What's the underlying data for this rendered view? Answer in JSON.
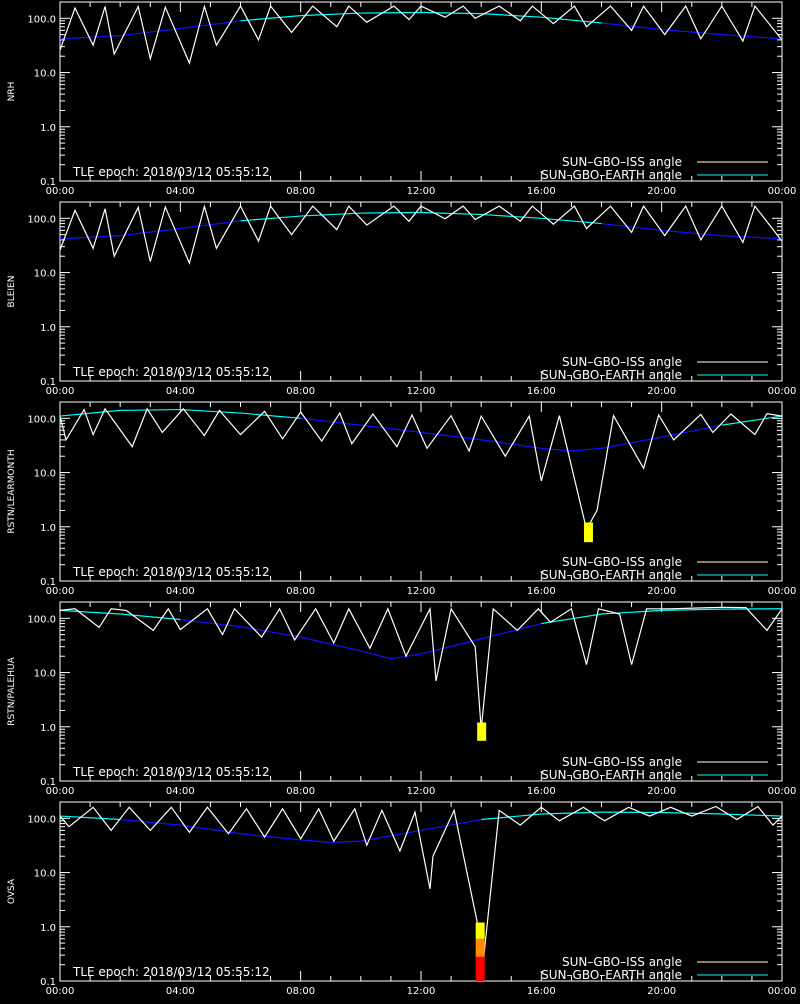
{
  "figure": {
    "x_ticks": [
      "00:00",
      "04:00",
      "08:00",
      "12:00",
      "16:00",
      "20:00",
      "00:00"
    ],
    "y_ticks": [
      "0.1",
      "1.0",
      "10.0",
      "100.0"
    ],
    "epoch_text": "TLE epoch: 2018/03/12 05:55:12",
    "legend": [
      {
        "label": "SUN–GBO–ISS angle",
        "color": "#ffffff"
      },
      {
        "label": "SUN–GBO–EARTH angle",
        "color": "#00ffff"
      }
    ],
    "colors": {
      "iss": "#ffffff",
      "earth_above": "#00ffff",
      "earth_below": "#1010ff",
      "ylow": "#ffff00",
      "orange": "#ff8c00",
      "red": "#ff0000",
      "background": "#000000"
    }
  },
  "chart_data": [
    {
      "type": "line",
      "ylabel": "NRH",
      "xlim": [
        0,
        24
      ],
      "ylim": [
        0.1,
        200
      ],
      "y_scale": "log",
      "earth": {
        "x": [
          0,
          2,
          4,
          6,
          8,
          10,
          12,
          14,
          16,
          18,
          20,
          22,
          24
        ],
        "y": [
          42,
          48,
          65,
          90,
          112,
          125,
          128,
          122,
          105,
          82,
          62,
          50,
          42
        ]
      },
      "iss": {
        "x": [
          0,
          0.5,
          1.1,
          1.5,
          1.8,
          2.6,
          3.0,
          3.5,
          4.3,
          4.8,
          5.2,
          6.0,
          6.6,
          7.0,
          7.7,
          8.4,
          9.2,
          9.6,
          10.2,
          11.1,
          11.6,
          12.0,
          12.8,
          13.4,
          13.8,
          14.6,
          15.3,
          15.7,
          16.4,
          17.1,
          17.5,
          18.3,
          19.0,
          19.4,
          20.1,
          20.8,
          21.3,
          22.0,
          22.7,
          23.1,
          24
        ],
        "y": [
          26,
          155,
          32,
          165,
          22,
          165,
          18,
          160,
          15,
          165,
          32,
          168,
          40,
          168,
          55,
          168,
          70,
          168,
          85,
          168,
          95,
          168,
          105,
          168,
          100,
          168,
          90,
          168,
          80,
          168,
          70,
          168,
          60,
          168,
          50,
          168,
          42,
          168,
          38,
          168,
          40
        ]
      },
      "markers": []
    },
    {
      "type": "line",
      "ylabel": "BLEIEN",
      "xlim": [
        0,
        24
      ],
      "ylim": [
        0.1,
        200
      ],
      "y_scale": "log",
      "earth": {
        "x": [
          0,
          2,
          4,
          6,
          8,
          10,
          12,
          14,
          16,
          18,
          20,
          22,
          24
        ],
        "y": [
          42,
          48,
          65,
          90,
          110,
          125,
          128,
          118,
          100,
          80,
          60,
          48,
          42
        ]
      },
      "iss": {
        "x": [
          0,
          0.5,
          1.1,
          1.5,
          1.8,
          2.6,
          3.0,
          3.5,
          4.3,
          4.8,
          5.2,
          6.0,
          6.6,
          7.0,
          7.7,
          8.4,
          9.2,
          9.6,
          10.2,
          11.1,
          11.6,
          12.0,
          12.8,
          13.4,
          13.8,
          14.6,
          15.3,
          15.7,
          16.4,
          17.1,
          17.5,
          18.3,
          19.0,
          19.4,
          20.1,
          20.8,
          21.3,
          22.0,
          22.7,
          23.1,
          24
        ],
        "y": [
          26,
          140,
          28,
          150,
          20,
          160,
          16,
          162,
          15,
          165,
          28,
          168,
          38,
          168,
          50,
          168,
          62,
          168,
          75,
          168,
          88,
          168,
          98,
          168,
          95,
          168,
          88,
          168,
          78,
          168,
          65,
          168,
          55,
          168,
          48,
          168,
          40,
          168,
          36,
          168,
          38
        ]
      },
      "markers": []
    },
    {
      "type": "line",
      "ylabel": "RSTN/LEARMONTH",
      "xlim": [
        0,
        24
      ],
      "ylim": [
        0.1,
        200
      ],
      "y_scale": "log",
      "earth": {
        "x": [
          0,
          2,
          4,
          6,
          8,
          10,
          12,
          14,
          16,
          17,
          18,
          20,
          22,
          24
        ],
        "y": [
          110,
          140,
          145,
          125,
          100,
          75,
          55,
          40,
          28,
          25,
          28,
          45,
          75,
          110
        ]
      },
      "iss": {
        "x": [
          0,
          0.2,
          0.8,
          1.1,
          1.5,
          2.4,
          2.9,
          3.4,
          4.1,
          4.8,
          5.3,
          6.0,
          6.8,
          7.4,
          8.0,
          8.7,
          9.3,
          9.7,
          10.4,
          11.2,
          11.7,
          12.2,
          13.0,
          13.6,
          14.0,
          14.8,
          15.6,
          16.0,
          16.6,
          17.5,
          17.85,
          18.4,
          19.4,
          19.9,
          20.4,
          21.3,
          21.7,
          22.3,
          23.1,
          23.5,
          24
        ],
        "y": [
          110,
          40,
          145,
          50,
          150,
          30,
          150,
          55,
          150,
          48,
          140,
          50,
          135,
          42,
          130,
          38,
          125,
          34,
          120,
          30,
          115,
          28,
          112,
          25,
          110,
          20,
          110,
          7,
          112,
          0.9,
          2,
          112,
          12,
          115,
          40,
          118,
          55,
          120,
          50,
          122,
          110
        ]
      },
      "markers": [
        {
          "x": 17.55,
          "stack": [
            {
              "from": 0.52,
              "to": 1.2,
              "color": "#ffff00"
            }
          ]
        }
      ]
    },
    {
      "type": "line",
      "ylabel": "RSTN/PALEHUA",
      "xlim": [
        0,
        24
      ],
      "ylim": [
        0.1,
        200
      ],
      "y_scale": "log",
      "earth": {
        "x": [
          0,
          2,
          4,
          6,
          8,
          10,
          11,
          12,
          14,
          16,
          18,
          20,
          22,
          24
        ],
        "y": [
          140,
          120,
          95,
          70,
          45,
          25,
          18,
          22,
          42,
          80,
          120,
          140,
          148,
          150
        ]
      },
      "iss": {
        "x": [
          0,
          0.5,
          1.3,
          1.7,
          2.2,
          3.1,
          3.6,
          4.0,
          4.9,
          5.4,
          5.8,
          6.7,
          7.3,
          7.8,
          8.5,
          9.1,
          9.6,
          10.3,
          10.9,
          11.5,
          12.3,
          12.5,
          13.0,
          13.8,
          14.0,
          14.4,
          15.2,
          15.9,
          16.3,
          17.0,
          17.5,
          17.9,
          18.6,
          19.0,
          19.5,
          20.3,
          21.2,
          22.0,
          22.8,
          23.5,
          24
        ],
        "y": [
          140,
          150,
          68,
          150,
          140,
          60,
          150,
          62,
          150,
          50,
          150,
          45,
          150,
          40,
          150,
          35,
          150,
          28,
          150,
          20,
          150,
          7,
          150,
          30,
          0.9,
          150,
          60,
          150,
          85,
          150,
          14,
          150,
          120,
          14,
          150,
          150,
          155,
          160,
          158,
          60,
          150
        ]
      },
      "markers": [
        {
          "x": 14.0,
          "stack": [
            {
              "from": 0.55,
              "to": 1.2,
              "color": "#ffff00"
            }
          ]
        }
      ]
    },
    {
      "type": "line",
      "ylabel": "OVSA",
      "xlim": [
        0,
        24
      ],
      "ylim": [
        0.1,
        200
      ],
      "y_scale": "log",
      "earth": {
        "x": [
          0,
          2,
          4,
          6,
          8,
          9,
          10,
          12,
          14,
          16,
          18,
          20,
          22,
          24
        ],
        "y": [
          110,
          95,
          75,
          52,
          40,
          36,
          38,
          60,
          95,
          120,
          130,
          128,
          120,
          110
        ]
      },
      "iss": {
        "x": [
          0,
          0.3,
          1.1,
          1.7,
          2.3,
          3.0,
          3.7,
          4.3,
          4.9,
          5.6,
          6.2,
          6.8,
          7.4,
          8.0,
          8.6,
          9.1,
          9.8,
          10.2,
          10.7,
          11.3,
          11.8,
          12.3,
          12.4,
          13.1,
          13.9,
          14.0,
          14.6,
          15.3,
          16.0,
          16.6,
          17.4,
          18.1,
          18.9,
          19.6,
          20.3,
          21.0,
          21.8,
          22.5,
          23.2,
          23.7,
          24
        ],
        "y": [
          110,
          70,
          160,
          60,
          160,
          60,
          160,
          55,
          160,
          52,
          150,
          45,
          150,
          42,
          150,
          38,
          150,
          32,
          140,
          25,
          130,
          5,
          20,
          140,
          1,
          0.1,
          140,
          75,
          160,
          90,
          160,
          90,
          160,
          110,
          160,
          110,
          165,
          95,
          165,
          75,
          110
        ]
      },
      "markers": [
        {
          "x": 13.95,
          "stack": [
            {
              "from": 0.1,
              "to": 0.28,
              "color": "#ff0000"
            },
            {
              "from": 0.28,
              "to": 0.6,
              "color": "#ff8c00"
            },
            {
              "from": 0.6,
              "to": 1.2,
              "color": "#ffff00"
            }
          ]
        }
      ]
    }
  ]
}
